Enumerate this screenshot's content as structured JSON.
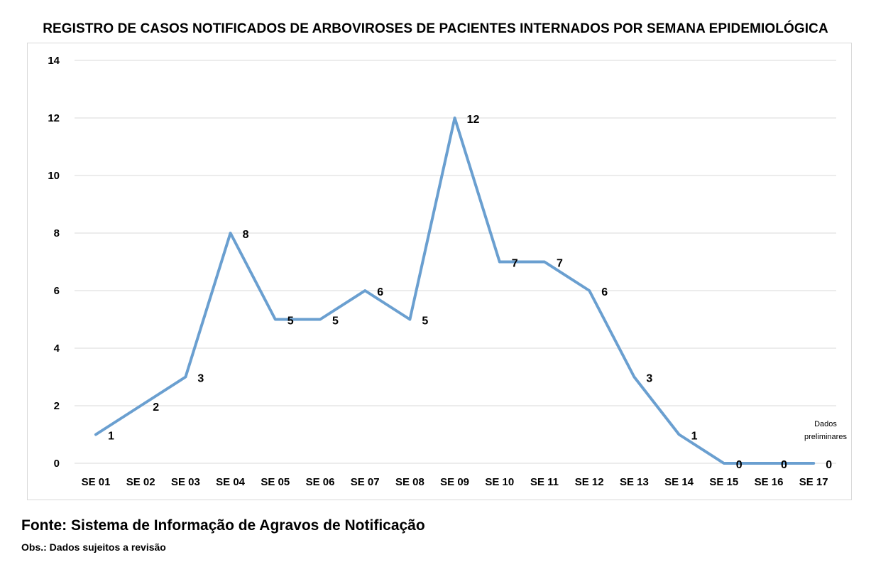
{
  "chart_data": {
    "type": "line",
    "title": "REGISTRO DE CASOS NOTIFICADOS DE ARBOVIROSES DE PACIENTES INTERNADOS POR SEMANA EPIDEMIOLÓGICA",
    "categories": [
      "SE 01",
      "SE 02",
      "SE 03",
      "SE 04",
      "SE 05",
      "SE 06",
      "SE 07",
      "SE 08",
      "SE 09",
      "SE 10",
      "SE 11",
      "SE 12",
      "SE 13",
      "SE 14",
      "SE 15",
      "SE 16",
      "SE 17"
    ],
    "series": [
      {
        "values": [
          1,
          2,
          3,
          8,
          5,
          5,
          6,
          5,
          12,
          7,
          7,
          6,
          3,
          1,
          0,
          0,
          0
        ]
      }
    ],
    "ylim": [
      0,
      14
    ],
    "yticks": [
      0,
      2,
      4,
      6,
      8,
      10,
      12,
      14
    ],
    "grid": true,
    "legend": "none",
    "line_color": "#6a9fd0",
    "annotation": [
      "Dados",
      "preliminares"
    ]
  },
  "footer": {
    "source": "Fonte: Sistema de Informação de Agravos de Notificação",
    "obs": "Obs.: Dados sujeitos a revisão"
  }
}
